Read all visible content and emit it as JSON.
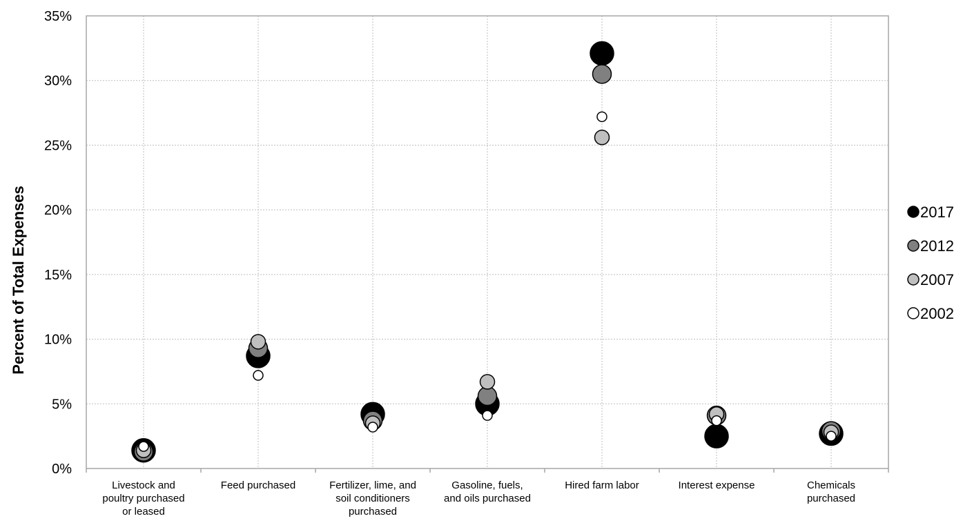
{
  "chart_data": {
    "type": "scatter",
    "title": "",
    "xlabel": "",
    "ylabel": "Percent of Total Expenses",
    "ylim": [
      0,
      35
    ],
    "yticks": [
      0,
      5,
      10,
      15,
      20,
      25,
      30,
      35
    ],
    "ytick_labels": [
      "0%",
      "5%",
      "10%",
      "15%",
      "20%",
      "25%",
      "30%",
      "35%"
    ],
    "grid": true,
    "legend_position": "right",
    "categories": [
      [
        "Livestock and",
        "poultry purchased",
        "or leased"
      ],
      [
        "Feed purchased"
      ],
      [
        "Fertilizer, lime, and",
        "soil conditioners",
        "purchased"
      ],
      [
        "Gasoline, fuels,",
        "and oils purchased"
      ],
      [
        "Hired farm labor"
      ],
      [
        "Interest expense"
      ],
      [
        "Chemicals",
        "purchased"
      ]
    ],
    "series": [
      {
        "name": "2002",
        "color": "#ffffff",
        "values": [
          1.7,
          7.2,
          3.2,
          4.1,
          27.2,
          3.7,
          2.5
        ]
      },
      {
        "name": "2007",
        "color": "#bfbfbf",
        "values": [
          1.4,
          9.8,
          3.5,
          6.7,
          25.6,
          4.2,
          2.8
        ]
      },
      {
        "name": "2012",
        "color": "#808080",
        "values": [
          1.3,
          9.3,
          3.7,
          5.6,
          30.5,
          4.1,
          2.9
        ]
      },
      {
        "name": "2017",
        "color": "#000000",
        "values": [
          1.4,
          8.7,
          4.2,
          5.0,
          32.1,
          2.5,
          2.7
        ]
      }
    ],
    "legend_order": [
      "2017",
      "2012",
      "2007",
      "2002"
    ]
  }
}
